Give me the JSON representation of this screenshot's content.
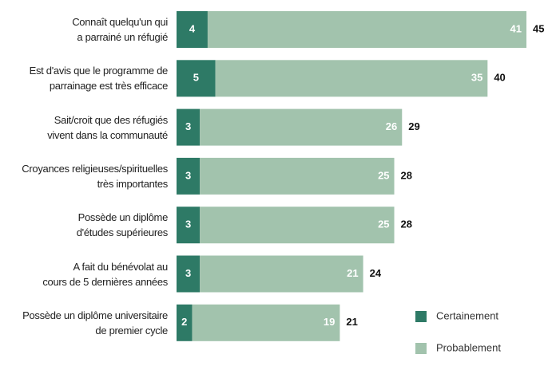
{
  "chart_data": {
    "type": "stacked-bar-horizontal",
    "categories": [
      "Connaît quelqu'un qui\na parrainé un réfugié",
      "Est d'avis que le programme de\nparrainage est très efficace",
      "Sait/croit que des réfugiés\nvivent dans la communauté",
      "Croyances religieuses/spirituelles\ntrès importantes",
      "Possède un diplôme\nd'études supérieures",
      "A fait du bénévolat au\ncours de 5 dernières années",
      "Possède un diplôme universitaire\nde premier cycle"
    ],
    "series": [
      {
        "name": "Certainement",
        "color": "#2e7a66",
        "values": [
          4,
          5,
          3,
          3,
          3,
          3,
          2
        ]
      },
      {
        "name": "Probablement",
        "color": "#a2c3ad",
        "values": [
          41,
          35,
          26,
          25,
          25,
          21,
          19
        ]
      }
    ],
    "totals": [
      45,
      40,
      29,
      28,
      28,
      24,
      21
    ]
  }
}
